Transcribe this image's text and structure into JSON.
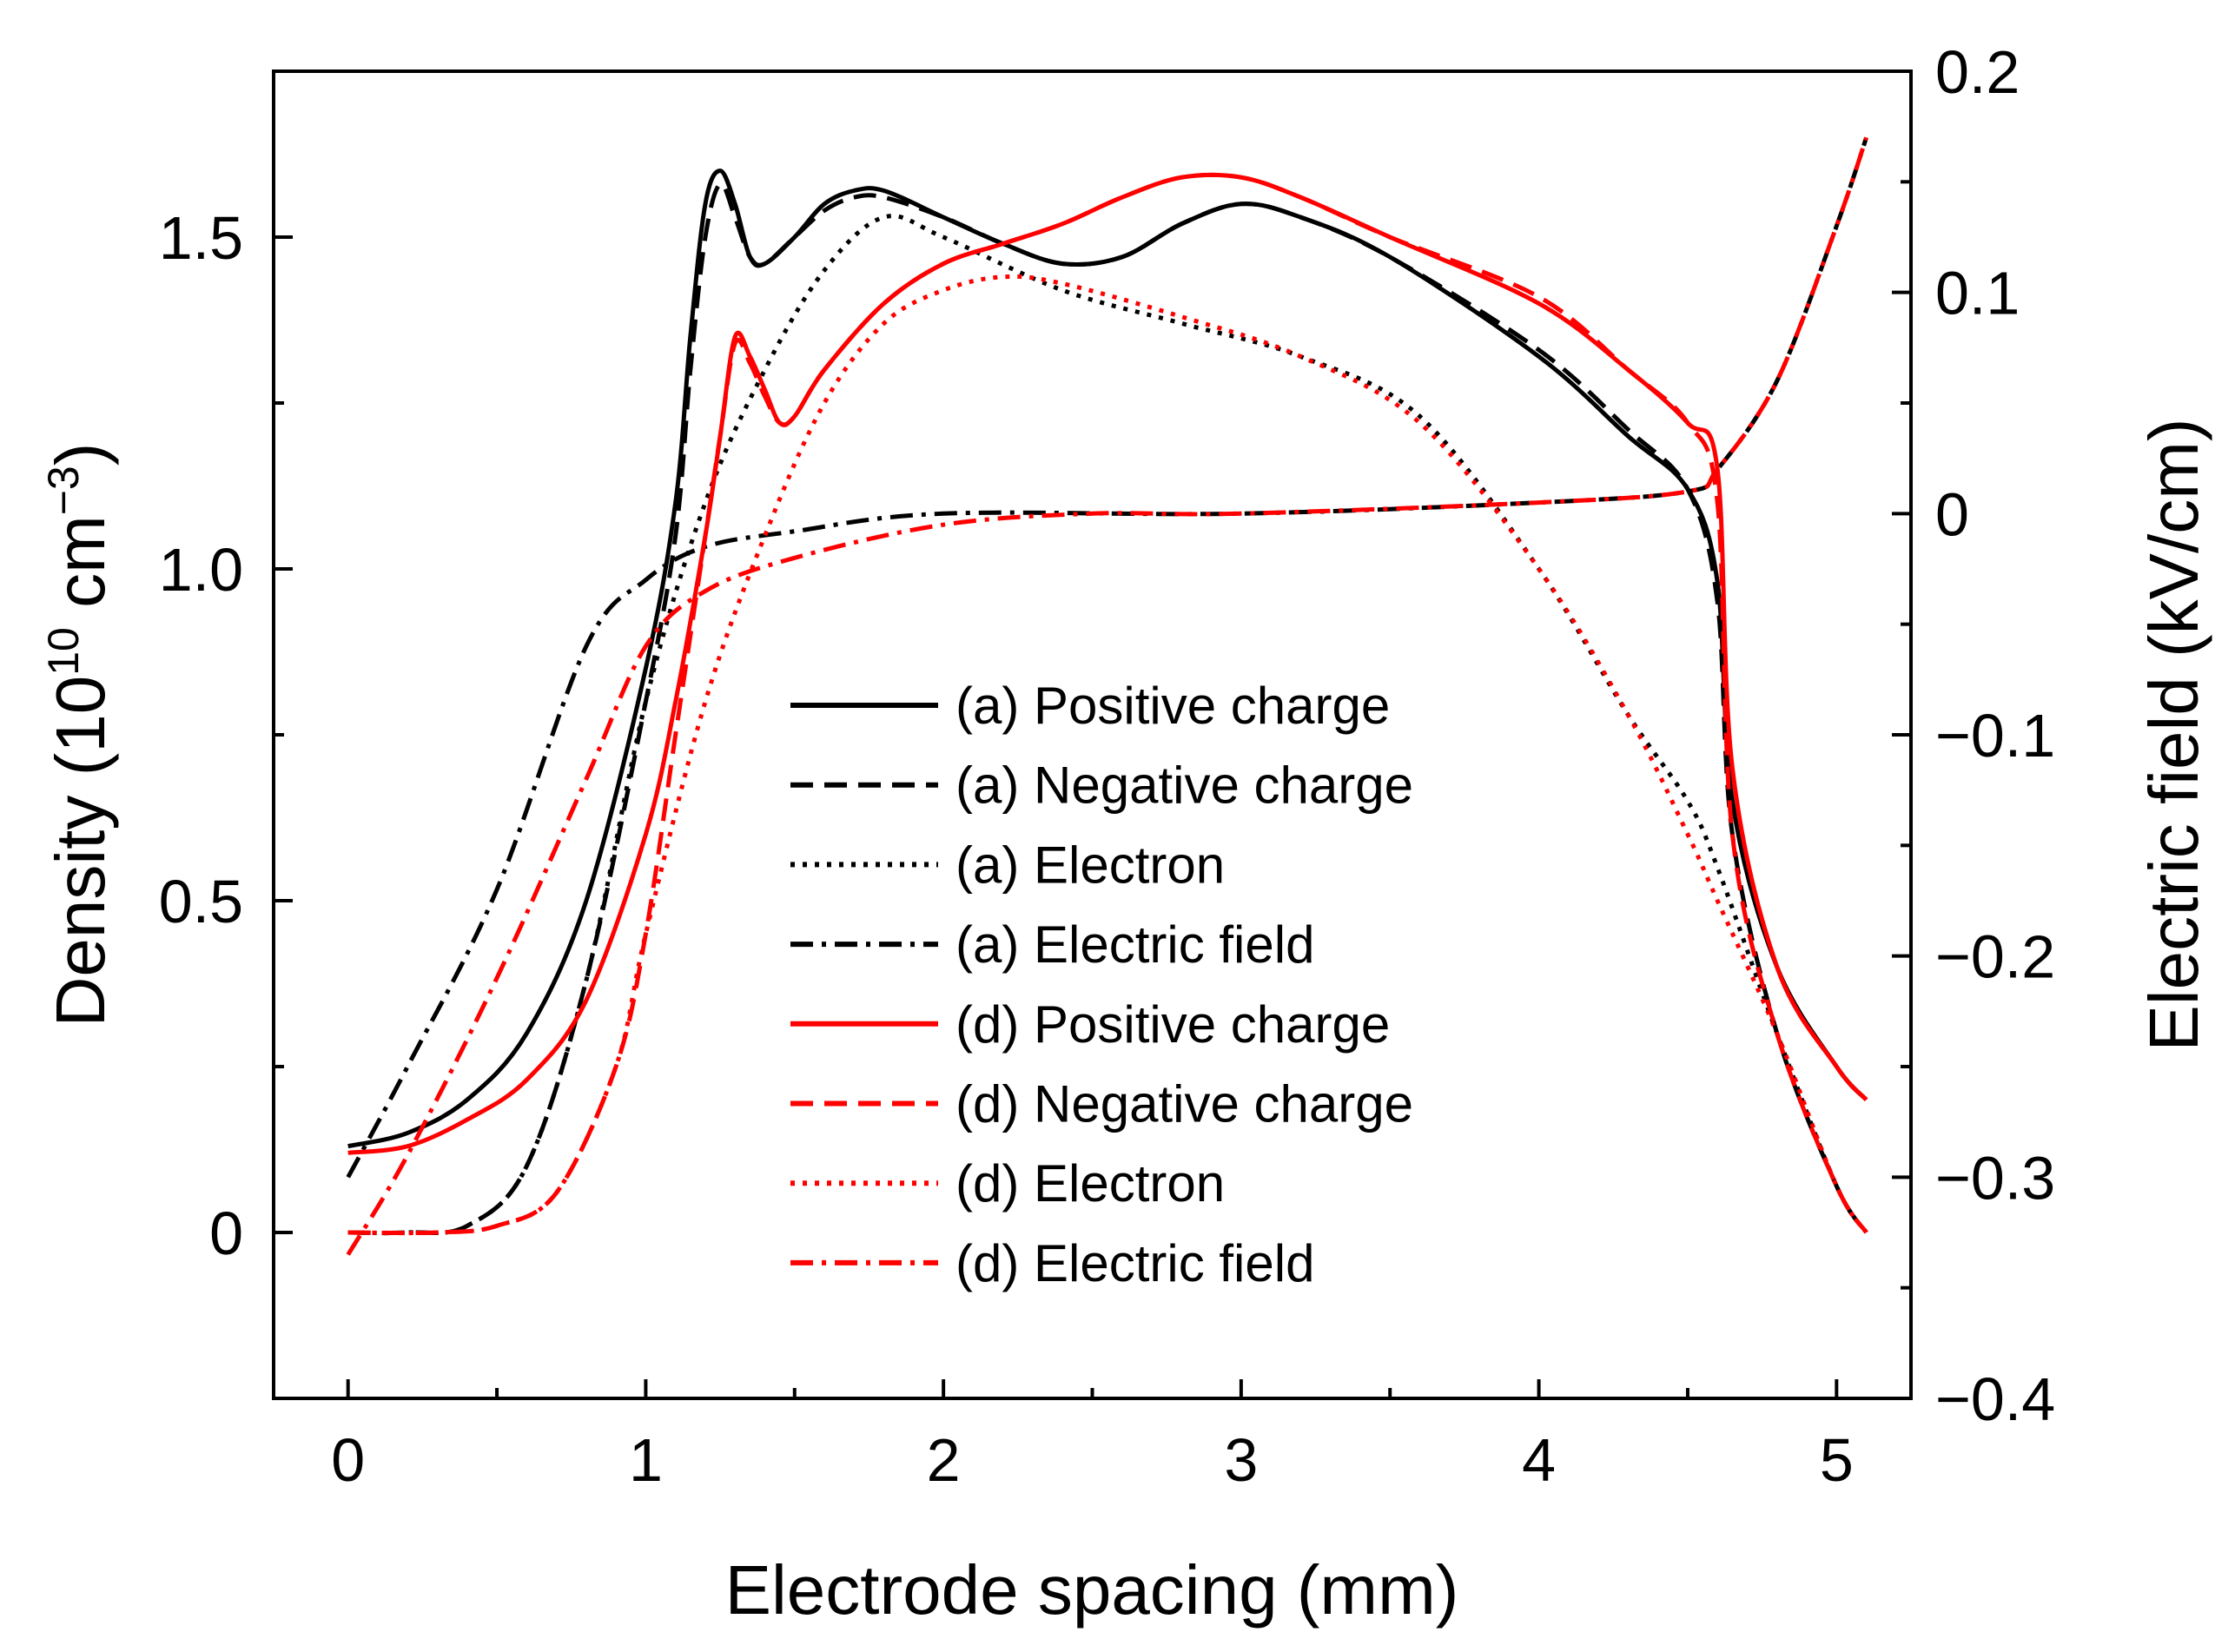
{
  "chart_data": {
    "type": "line",
    "xlabel": "Electrode spacing (mm)",
    "ylabel_left": {
      "prefix": "Density (10",
      "exp1": "10",
      "mid": " cm",
      "exp2": "−3",
      "suffix": ")"
    },
    "ylabel_right": "Electric field (kV/cm)",
    "xlim": [
      -0.25,
      5.25
    ],
    "ylim_left": [
      -0.25,
      1.75
    ],
    "ylim_right": [
      -0.4,
      0.2
    ],
    "x_ticks": [
      0,
      1,
      2,
      3,
      4,
      5
    ],
    "x_tick_labels": [
      "0",
      "1",
      "2",
      "3",
      "4",
      "5"
    ],
    "y_left_ticks": [
      0,
      0.5,
      1.0,
      1.5
    ],
    "y_left_tick_labels": [
      "0",
      "0.5",
      "1.0",
      "1.5"
    ],
    "y_right_ticks": [
      -0.4,
      -0.3,
      -0.2,
      -0.1,
      0,
      0.1,
      0.2
    ],
    "y_right_tick_labels": [
      "−0.4",
      "−0.3",
      "−0.2",
      "−0.1",
      "0",
      "0.1",
      "0.2"
    ],
    "legend_position": "center",
    "series": [
      {
        "name": "(a) Positive charge",
        "color": "#000000",
        "dash": "solid",
        "axis": "left",
        "points": [
          [
            0,
            0.13
          ],
          [
            0.2,
            0.15
          ],
          [
            0.4,
            0.2
          ],
          [
            0.6,
            0.3
          ],
          [
            0.8,
            0.5
          ],
          [
            1.0,
            0.85
          ],
          [
            1.1,
            1.1
          ],
          [
            1.15,
            1.35
          ],
          [
            1.2,
            1.55
          ],
          [
            1.25,
            1.6
          ],
          [
            1.3,
            1.55
          ],
          [
            1.35,
            1.47
          ],
          [
            1.4,
            1.46
          ],
          [
            1.5,
            1.5
          ],
          [
            1.6,
            1.55
          ],
          [
            1.7,
            1.57
          ],
          [
            1.8,
            1.57
          ],
          [
            2.0,
            1.53
          ],
          [
            2.2,
            1.49
          ],
          [
            2.4,
            1.46
          ],
          [
            2.6,
            1.47
          ],
          [
            2.8,
            1.52
          ],
          [
            3.0,
            1.55
          ],
          [
            3.2,
            1.53
          ],
          [
            3.5,
            1.47
          ],
          [
            4.0,
            1.32
          ],
          [
            4.3,
            1.2
          ],
          [
            4.5,
            1.12
          ],
          [
            4.6,
            0.98
          ],
          [
            4.65,
            0.65
          ],
          [
            4.8,
            0.4
          ],
          [
            5.0,
            0.25
          ],
          [
            5.1,
            0.2
          ]
        ]
      },
      {
        "name": "(a) Negative charge",
        "color": "#000000",
        "dash": "dashed",
        "axis": "left",
        "points": [
          [
            0,
            0.0
          ],
          [
            0.2,
            0.0
          ],
          [
            0.4,
            0.01
          ],
          [
            0.6,
            0.1
          ],
          [
            0.8,
            0.38
          ],
          [
            1.0,
            0.8
          ],
          [
            1.1,
            1.05
          ],
          [
            1.15,
            1.3
          ],
          [
            1.2,
            1.5
          ],
          [
            1.25,
            1.58
          ],
          [
            1.3,
            1.53
          ],
          [
            1.35,
            1.47
          ],
          [
            1.4,
            1.46
          ],
          [
            1.5,
            1.5
          ],
          [
            1.6,
            1.54
          ],
          [
            1.7,
            1.56
          ],
          [
            1.8,
            1.56
          ],
          [
            2.0,
            1.53
          ],
          [
            2.2,
            1.49
          ],
          [
            2.4,
            1.46
          ],
          [
            2.6,
            1.47
          ],
          [
            2.8,
            1.52
          ],
          [
            3.0,
            1.55
          ],
          [
            3.2,
            1.53
          ],
          [
            3.5,
            1.47
          ],
          [
            4.0,
            1.33
          ],
          [
            4.3,
            1.21
          ],
          [
            4.5,
            1.12
          ],
          [
            4.6,
            0.95
          ],
          [
            4.65,
            0.6
          ],
          [
            4.8,
            0.3
          ],
          [
            5.0,
            0.07
          ],
          [
            5.1,
            0.0
          ]
        ]
      },
      {
        "name": "(a) Electron",
        "color": "#000000",
        "dash": "dotted",
        "axis": "left",
        "points": [
          [
            0,
            0.0
          ],
          [
            0.2,
            0.0
          ],
          [
            0.4,
            0.01
          ],
          [
            0.6,
            0.1
          ],
          [
            0.8,
            0.38
          ],
          [
            1.0,
            0.8
          ],
          [
            1.2,
            1.1
          ],
          [
            1.4,
            1.3
          ],
          [
            1.6,
            1.45
          ],
          [
            1.8,
            1.53
          ],
          [
            2.0,
            1.5
          ],
          [
            2.4,
            1.42
          ],
          [
            2.8,
            1.37
          ],
          [
            3.2,
            1.32
          ],
          [
            3.6,
            1.23
          ],
          [
            4.0,
            1.0
          ],
          [
            4.3,
            0.78
          ],
          [
            4.5,
            0.65
          ],
          [
            4.6,
            0.55
          ],
          [
            4.8,
            0.3
          ],
          [
            5.0,
            0.07
          ],
          [
            5.1,
            0.0
          ]
        ]
      },
      {
        "name": "(a) Electric field",
        "color": "#000000",
        "dash": "dashdot",
        "axis": "right",
        "points": [
          [
            0,
            -0.3
          ],
          [
            0.2,
            -0.25
          ],
          [
            0.5,
            -0.17
          ],
          [
            0.8,
            -0.06
          ],
          [
            1.0,
            -0.03
          ],
          [
            1.2,
            -0.015
          ],
          [
            1.5,
            -0.008
          ],
          [
            2.0,
            0.0
          ],
          [
            3.0,
            0.0
          ],
          [
            4.0,
            0.005
          ],
          [
            4.5,
            0.01
          ],
          [
            4.6,
            0.02
          ],
          [
            4.8,
            0.06
          ],
          [
            5.0,
            0.13
          ],
          [
            5.1,
            0.17
          ]
        ]
      },
      {
        "name": "(d) Positive charge",
        "color": "#ff0000",
        "dash": "solid",
        "axis": "left",
        "points": [
          [
            0,
            0.12
          ],
          [
            0.2,
            0.13
          ],
          [
            0.4,
            0.17
          ],
          [
            0.6,
            0.23
          ],
          [
            0.8,
            0.35
          ],
          [
            1.0,
            0.6
          ],
          [
            1.1,
            0.8
          ],
          [
            1.2,
            1.05
          ],
          [
            1.25,
            1.2
          ],
          [
            1.3,
            1.35
          ],
          [
            1.35,
            1.32
          ],
          [
            1.4,
            1.27
          ],
          [
            1.45,
            1.22
          ],
          [
            1.5,
            1.23
          ],
          [
            1.6,
            1.3
          ],
          [
            1.8,
            1.4
          ],
          [
            2.0,
            1.46
          ],
          [
            2.2,
            1.49
          ],
          [
            2.4,
            1.52
          ],
          [
            2.6,
            1.56
          ],
          [
            2.8,
            1.59
          ],
          [
            3.0,
            1.59
          ],
          [
            3.2,
            1.56
          ],
          [
            3.5,
            1.5
          ],
          [
            4.0,
            1.4
          ],
          [
            4.3,
            1.3
          ],
          [
            4.5,
            1.22
          ],
          [
            4.6,
            1.15
          ],
          [
            4.65,
            0.7
          ],
          [
            4.8,
            0.4
          ],
          [
            5.0,
            0.25
          ],
          [
            5.1,
            0.2
          ]
        ]
      },
      {
        "name": "(d) Negative charge",
        "color": "#ff0000",
        "dash": "dashed",
        "axis": "left",
        "points": [
          [
            0,
            0.0
          ],
          [
            0.3,
            0.0
          ],
          [
            0.5,
            0.01
          ],
          [
            0.7,
            0.06
          ],
          [
            0.9,
            0.25
          ],
          [
            1.0,
            0.45
          ],
          [
            1.1,
            0.75
          ],
          [
            1.2,
            1.05
          ],
          [
            1.25,
            1.2
          ],
          [
            1.3,
            1.34
          ],
          [
            1.35,
            1.31
          ],
          [
            1.4,
            1.26
          ],
          [
            1.45,
            1.22
          ],
          [
            1.5,
            1.23
          ],
          [
            1.6,
            1.3
          ],
          [
            1.8,
            1.4
          ],
          [
            2.0,
            1.46
          ],
          [
            2.2,
            1.49
          ],
          [
            2.4,
            1.52
          ],
          [
            2.6,
            1.56
          ],
          [
            2.8,
            1.59
          ],
          [
            3.0,
            1.59
          ],
          [
            3.2,
            1.56
          ],
          [
            3.5,
            1.5
          ],
          [
            4.0,
            1.41
          ],
          [
            4.3,
            1.3
          ],
          [
            4.5,
            1.22
          ],
          [
            4.6,
            1.1
          ],
          [
            4.65,
            0.6
          ],
          [
            4.8,
            0.3
          ],
          [
            5.0,
            0.07
          ],
          [
            5.1,
            0.0
          ]
        ]
      },
      {
        "name": "(d) Electron",
        "color": "#ff0000",
        "dash": "dotted",
        "axis": "left",
        "points": [
          [
            0,
            0.0
          ],
          [
            0.3,
            0.0
          ],
          [
            0.5,
            0.01
          ],
          [
            0.7,
            0.06
          ],
          [
            0.9,
            0.25
          ],
          [
            1.0,
            0.45
          ],
          [
            1.2,
            0.8
          ],
          [
            1.4,
            1.05
          ],
          [
            1.6,
            1.25
          ],
          [
            1.8,
            1.37
          ],
          [
            2.0,
            1.42
          ],
          [
            2.2,
            1.44
          ],
          [
            2.4,
            1.43
          ],
          [
            2.8,
            1.38
          ],
          [
            3.2,
            1.32
          ],
          [
            3.6,
            1.22
          ],
          [
            4.0,
            1.0
          ],
          [
            4.3,
            0.78
          ],
          [
            4.5,
            0.6
          ],
          [
            4.6,
            0.5
          ],
          [
            4.8,
            0.3
          ],
          [
            5.0,
            0.07
          ],
          [
            5.1,
            0.0
          ]
        ]
      },
      {
        "name": "(d) Electric field",
        "color": "#ff0000",
        "dash": "dashdot",
        "axis": "right",
        "points": [
          [
            0,
            -0.335
          ],
          [
            0.2,
            -0.29
          ],
          [
            0.5,
            -0.21
          ],
          [
            0.8,
            -0.12
          ],
          [
            1.0,
            -0.06
          ],
          [
            1.2,
            -0.035
          ],
          [
            1.5,
            -0.02
          ],
          [
            2.0,
            -0.005
          ],
          [
            2.5,
            0.0
          ],
          [
            3.0,
            0.0
          ],
          [
            4.0,
            0.005
          ],
          [
            4.5,
            0.01
          ],
          [
            4.6,
            0.02
          ],
          [
            4.8,
            0.06
          ],
          [
            5.0,
            0.13
          ],
          [
            5.1,
            0.17
          ]
        ]
      }
    ]
  }
}
